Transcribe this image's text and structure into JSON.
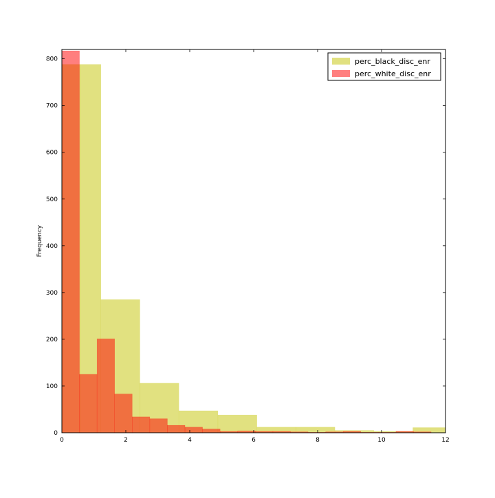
{
  "chart_data": {
    "type": "bar",
    "ylabel": "Frequency",
    "xlim": [
      0,
      12
    ],
    "ylim": [
      0,
      820
    ],
    "xticks": [
      "0",
      "2",
      "4",
      "6",
      "8",
      "10",
      "12"
    ],
    "yticks": [
      "0",
      "100",
      "200",
      "300",
      "400",
      "500",
      "600",
      "700",
      "800"
    ],
    "legend_position": "top-right",
    "series": [
      {
        "name": "perc_black_disc_enr",
        "color": "#d4d44a",
        "opacity": 0.7,
        "bin_edges": [
          0,
          0.58,
          1.22,
          2.44,
          3.66,
          4.88,
          6.1,
          7.32,
          8.54,
          9.76,
          10.98,
          12.2
        ],
        "values": [
          788,
          788,
          285,
          106,
          47,
          38,
          12,
          12,
          5,
          3,
          11
        ]
      },
      {
        "name": "perc_white_disc_enr",
        "color": "#ff0000",
        "opacity": 0.5,
        "bin_edges": [
          0,
          0.55,
          1.1,
          1.65,
          2.2,
          2.75,
          3.3,
          3.85,
          4.4,
          4.95,
          5.5,
          6.05,
          6.6,
          7.15,
          7.7,
          8.25,
          8.8,
          9.35,
          9.9,
          10.45,
          11.0,
          11.55,
          12.1
        ],
        "values": [
          817,
          125,
          201,
          83,
          34,
          30,
          16,
          12,
          8,
          3,
          4,
          3,
          3,
          2,
          1,
          2,
          3,
          1,
          1,
          3,
          2,
          0
        ]
      }
    ]
  }
}
